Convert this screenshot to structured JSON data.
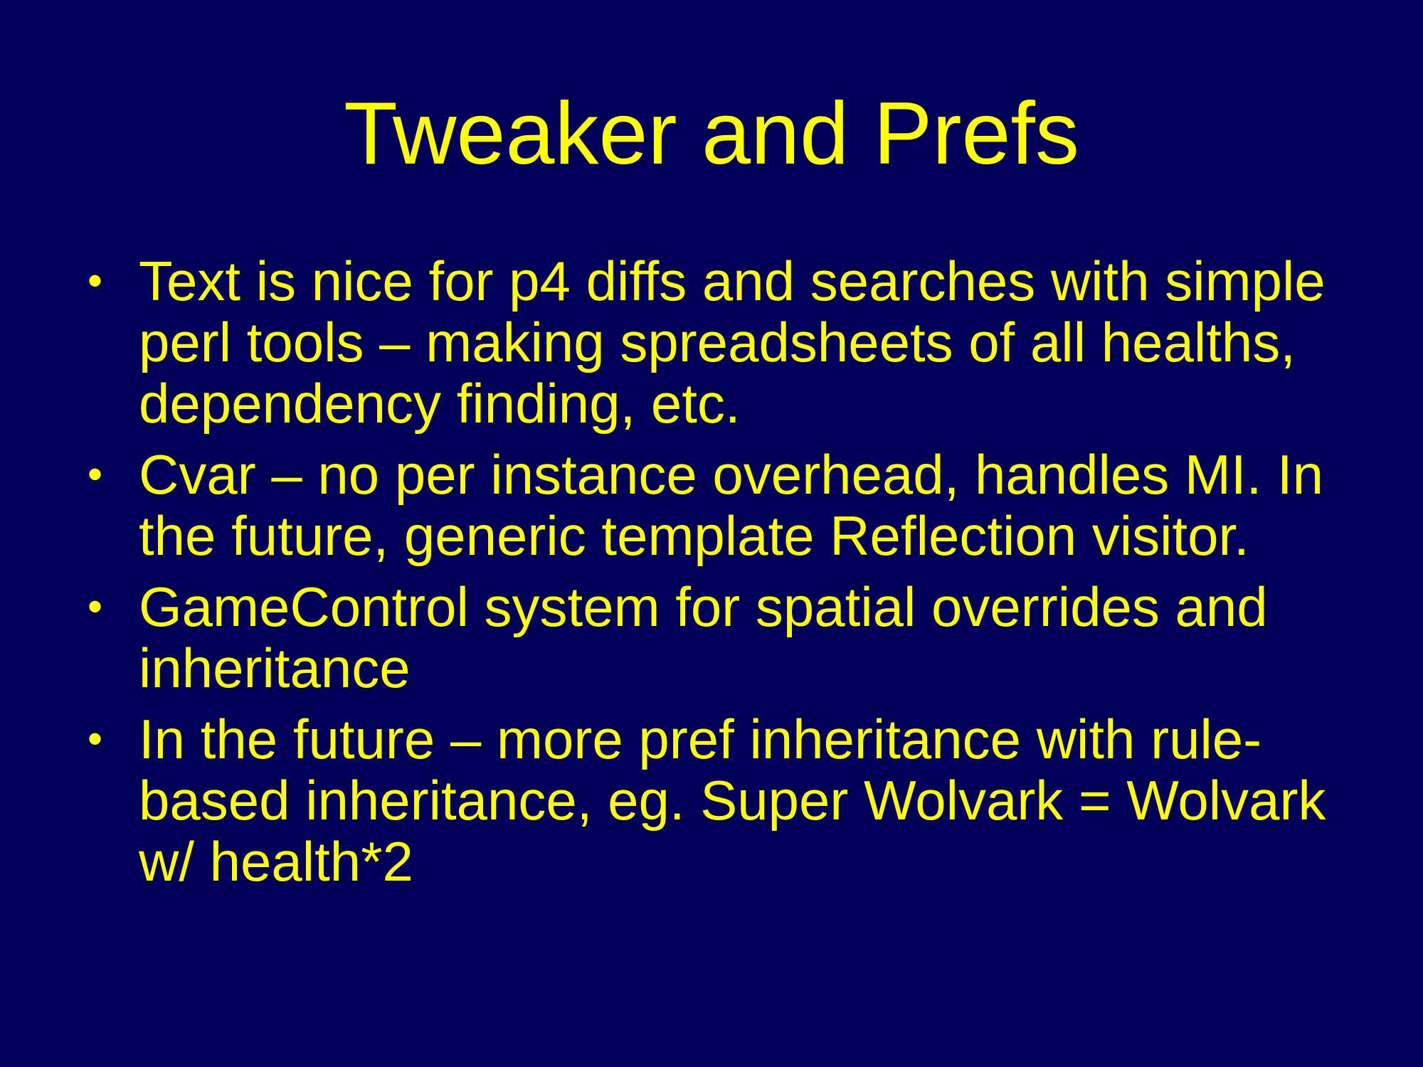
{
  "slide": {
    "title": "Tweaker and Prefs",
    "bullet_glyph": "•",
    "bullets": [
      "Text is nice for p4 diffs and searches with simple perl tools – making spreadsheets of all healths, dependency finding, etc.",
      "Cvar – no per instance overhead, handles MI. In the future, generic template Reflection visitor.",
      "GameControl system for spatial overrides and inheritance",
      "In the future – more pref inheritance with rule-based inheritance, eg. Super Wolvark = Wolvark w/ health*2"
    ]
  },
  "colors": {
    "background": "#000059",
    "text": "#ffff00"
  }
}
